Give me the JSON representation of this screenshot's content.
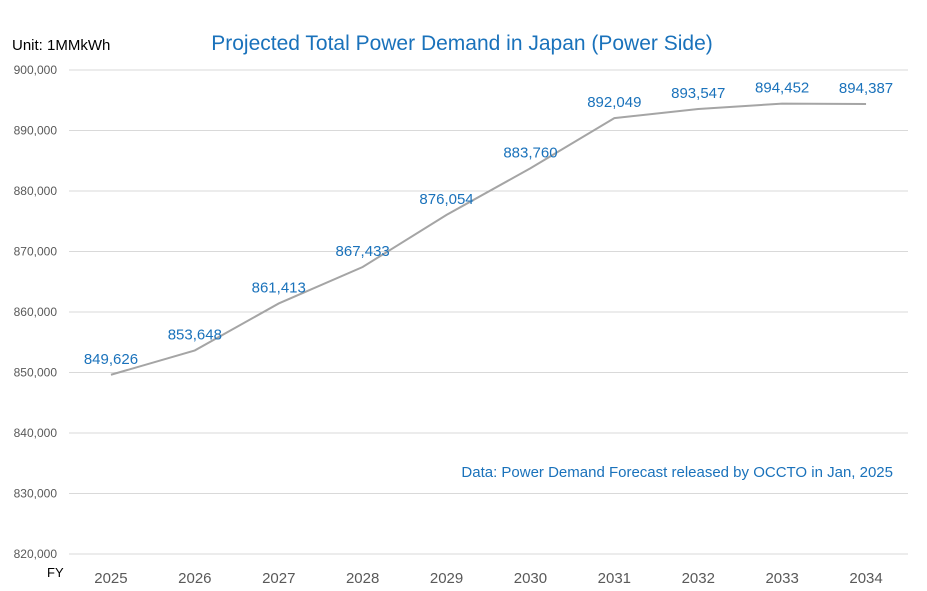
{
  "chart_data": {
    "type": "line",
    "title": "Projected Total Power Demand in Japan (Power Side)",
    "unit_label": "Unit: 1MMkWh",
    "xlabel": "FY",
    "ylabel": "",
    "source_note": "Data: Power Demand Forecast released by OCCTO in Jan, 2025",
    "categories": [
      "2025",
      "2026",
      "2027",
      "2028",
      "2029",
      "2030",
      "2031",
      "2032",
      "2033",
      "2034"
    ],
    "series": [
      {
        "values": [
          849626,
          853648,
          861413,
          867433,
          876054,
          883760,
          892049,
          893547,
          894452,
          894387
        ]
      }
    ],
    "data_labels": [
      "849,626",
      "853,648",
      "861,413",
      "867,433",
      "876,054",
      "883,760",
      "892,049",
      "893,547",
      "894,452",
      "894,387"
    ],
    "ylim": [
      820000,
      900000
    ],
    "yticks": [
      820000,
      830000,
      840000,
      850000,
      860000,
      870000,
      880000,
      890000,
      900000
    ],
    "ytick_labels": [
      "820,000",
      "830,000",
      "840,000",
      "850,000",
      "860,000",
      "870,000",
      "880,000",
      "890,000",
      "900,000"
    ],
    "grid": true,
    "legend": "none",
    "colors": {
      "line": "#a5a5a5",
      "labels": "#1a72bb",
      "grid": "#d9d9d9"
    }
  }
}
